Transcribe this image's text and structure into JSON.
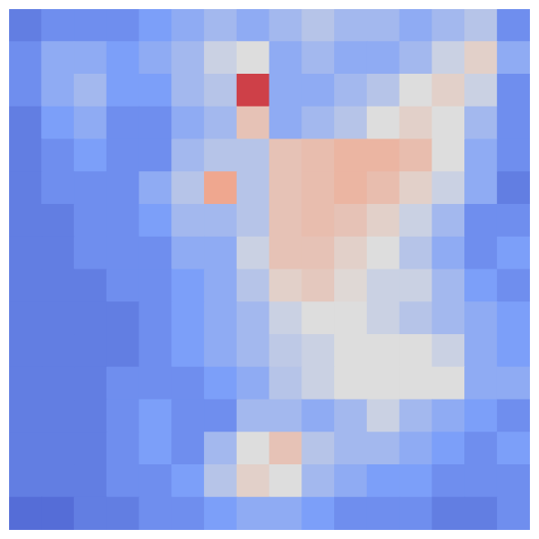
{
  "chart_data": {
    "type": "heatmap",
    "grid": false,
    "tick_labels": false,
    "xlim": [
      0,
      16
    ],
    "ylim": [
      0,
      16
    ],
    "zlim": [
      0,
      1
    ],
    "cells": [
      [
        0.15,
        0.2,
        0.2,
        0.2,
        0.25,
        0.3,
        0.35,
        0.3,
        0.35,
        0.4,
        0.35,
        0.35,
        0.3,
        0.35,
        0.4,
        0.2
      ],
      [
        0.2,
        0.3,
        0.3,
        0.25,
        0.3,
        0.35,
        0.45,
        0.5,
        0.3,
        0.35,
        0.3,
        0.3,
        0.35,
        0.45,
        0.55,
        0.3
      ],
      [
        0.2,
        0.3,
        0.35,
        0.25,
        0.25,
        0.35,
        0.4,
        0.9,
        0.3,
        0.3,
        0.35,
        0.4,
        0.5,
        0.55,
        0.45,
        0.2
      ],
      [
        0.15,
        0.25,
        0.3,
        0.2,
        0.2,
        0.3,
        0.35,
        0.6,
        0.3,
        0.35,
        0.4,
        0.5,
        0.55,
        0.5,
        0.35,
        0.2
      ],
      [
        0.15,
        0.2,
        0.25,
        0.2,
        0.2,
        0.35,
        0.4,
        0.4,
        0.6,
        0.62,
        0.65,
        0.65,
        0.62,
        0.5,
        0.3,
        0.2
      ],
      [
        0.15,
        0.2,
        0.2,
        0.2,
        0.3,
        0.4,
        0.7,
        0.4,
        0.6,
        0.62,
        0.65,
        0.62,
        0.55,
        0.45,
        0.3,
        0.15
      ],
      [
        0.15,
        0.15,
        0.2,
        0.2,
        0.25,
        0.35,
        0.35,
        0.4,
        0.6,
        0.62,
        0.6,
        0.55,
        0.45,
        0.35,
        0.2,
        0.2
      ],
      [
        0.15,
        0.15,
        0.2,
        0.2,
        0.2,
        0.3,
        0.3,
        0.45,
        0.6,
        0.6,
        0.55,
        0.5,
        0.4,
        0.3,
        0.2,
        0.25
      ],
      [
        0.15,
        0.15,
        0.15,
        0.2,
        0.2,
        0.25,
        0.3,
        0.4,
        0.55,
        0.58,
        0.52,
        0.45,
        0.45,
        0.35,
        0.25,
        0.2
      ],
      [
        0.15,
        0.15,
        0.15,
        0.15,
        0.2,
        0.25,
        0.3,
        0.35,
        0.45,
        0.5,
        0.5,
        0.45,
        0.4,
        0.35,
        0.3,
        0.25
      ],
      [
        0.15,
        0.15,
        0.15,
        0.15,
        0.2,
        0.25,
        0.3,
        0.35,
        0.42,
        0.45,
        0.5,
        0.5,
        0.5,
        0.45,
        0.3,
        0.25
      ],
      [
        0.15,
        0.15,
        0.15,
        0.2,
        0.2,
        0.2,
        0.25,
        0.3,
        0.4,
        0.45,
        0.5,
        0.5,
        0.5,
        0.5,
        0.3,
        0.3
      ],
      [
        0.15,
        0.15,
        0.15,
        0.2,
        0.25,
        0.2,
        0.2,
        0.35,
        0.35,
        0.3,
        0.35,
        0.45,
        0.35,
        0.3,
        0.25,
        0.2
      ],
      [
        0.15,
        0.15,
        0.15,
        0.2,
        0.25,
        0.2,
        0.35,
        0.5,
        0.6,
        0.4,
        0.35,
        0.35,
        0.3,
        0.25,
        0.2,
        0.25
      ],
      [
        0.15,
        0.15,
        0.15,
        0.2,
        0.2,
        0.25,
        0.4,
        0.55,
        0.5,
        0.35,
        0.3,
        0.25,
        0.25,
        0.2,
        0.2,
        0.2
      ],
      [
        0.1,
        0.1,
        0.15,
        0.15,
        0.2,
        0.2,
        0.25,
        0.3,
        0.3,
        0.25,
        0.2,
        0.2,
        0.2,
        0.15,
        0.15,
        0.2
      ]
    ]
  }
}
